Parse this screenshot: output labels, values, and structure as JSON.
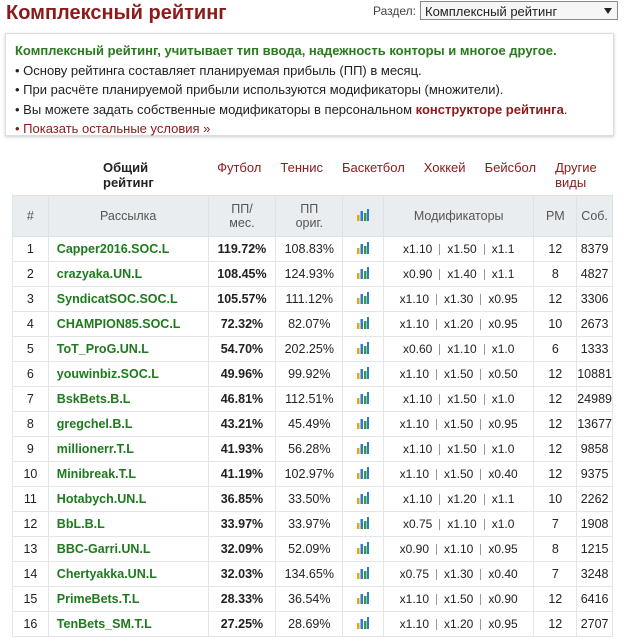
{
  "header": {
    "title": "Комплексный рейтинг",
    "section_label": "Раздел:",
    "section_select": "Комплексный рейтинг"
  },
  "info": {
    "heading": "Комплексный рейтинг, учитывает тип ввода, надежность конторы и многое другое.",
    "item1": "• Основу рейтинга составляет планируемая прибыль (ПП) в месяц.",
    "item2": "• При расчёте планируемой прибыли используются модификаторы (множители).",
    "item3_text": "• Вы можете задать собственные модификаторы в персональном ",
    "item3_link": "конструкторе рейтинга",
    "item3_end": ".",
    "item4": "• Показать остальные условия »"
  },
  "tabs": [
    "Общий рейтинг",
    "Футбол",
    "Теннис",
    "Баскетбол",
    "Хоккей",
    "Бейсбол",
    "Другие виды"
  ],
  "table": {
    "columns": {
      "num": "#",
      "name": "Рассылка",
      "pp": [
        "ПП/",
        "мес."
      ],
      "pp_orig": [
        "ПП",
        "ориг."
      ],
      "modifiers": "Модификаторы",
      "rm": "РМ",
      "events": "Соб."
    },
    "rows": [
      [
        "1",
        "Capper2016.SOC.L",
        "119.72%",
        "108.83%",
        [
          "x1.10",
          "x1.50",
          "x1.1"
        ],
        "12",
        "8379"
      ],
      [
        "2",
        "crazyaka.UN.L",
        "108.45%",
        "124.93%",
        [
          "x0.90",
          "x1.40",
          "x1.1"
        ],
        "8",
        "4827"
      ],
      [
        "3",
        "SyndicatSOC.SOC.L",
        "105.57%",
        "111.12%",
        [
          "x1.10",
          "x1.30",
          "x0.95"
        ],
        "12",
        "3306"
      ],
      [
        "4",
        "CHAMPION85.SOC.L",
        "72.32%",
        "82.07%",
        [
          "x1.10",
          "x1.20",
          "x0.95"
        ],
        "10",
        "2673"
      ],
      [
        "5",
        "ToT_ProG.UN.L",
        "54.70%",
        "202.25%",
        [
          "x0.60",
          "x1.10",
          "x1.0"
        ],
        "6",
        "1333"
      ],
      [
        "6",
        "youwinbiz.SOC.L",
        "49.96%",
        "99.92%",
        [
          "x1.10",
          "x1.50",
          "x0.50"
        ],
        "12",
        "10881"
      ],
      [
        "7",
        "BskBets.B.L",
        "46.81%",
        "112.51%",
        [
          "x1.10",
          "x1.50",
          "x1.0"
        ],
        "12",
        "24989"
      ],
      [
        "8",
        "gregchel.B.L",
        "43.21%",
        "45.49%",
        [
          "x1.10",
          "x1.50",
          "x0.95"
        ],
        "12",
        "13677"
      ],
      [
        "9",
        "millionerr.T.L",
        "41.93%",
        "56.28%",
        [
          "x1.10",
          "x1.50",
          "x1.0"
        ],
        "12",
        "9858"
      ],
      [
        "10",
        "Minibreak.T.L",
        "41.19%",
        "102.97%",
        [
          "x1.10",
          "x1.50",
          "x0.40"
        ],
        "12",
        "9375"
      ],
      [
        "11",
        "Hotabych.UN.L",
        "36.85%",
        "33.50%",
        [
          "x1.10",
          "x1.20",
          "x1.1"
        ],
        "10",
        "2262"
      ],
      [
        "12",
        "BbL.B.L",
        "33.97%",
        "33.97%",
        [
          "x0.75",
          "x1.10",
          "x1.0"
        ],
        "7",
        "1908"
      ],
      [
        "13",
        "BBC-Garri.UN.L",
        "32.09%",
        "52.09%",
        [
          "x0.90",
          "x1.10",
          "x0.95"
        ],
        "8",
        "1215"
      ],
      [
        "14",
        "Chertyakka.UN.L",
        "32.03%",
        "134.65%",
        [
          "x0.75",
          "x1.30",
          "x0.40"
        ],
        "7",
        "3248"
      ],
      [
        "15",
        "PrimeBets.T.L",
        "28.33%",
        "36.54%",
        [
          "x1.10",
          "x1.50",
          "x0.90"
        ],
        "12",
        "6416"
      ],
      [
        "16",
        "TenBets_SM.T.L",
        "27.25%",
        "28.69%",
        [
          "x1.10",
          "x1.20",
          "x0.95"
        ],
        "12",
        "2707"
      ]
    ]
  }
}
